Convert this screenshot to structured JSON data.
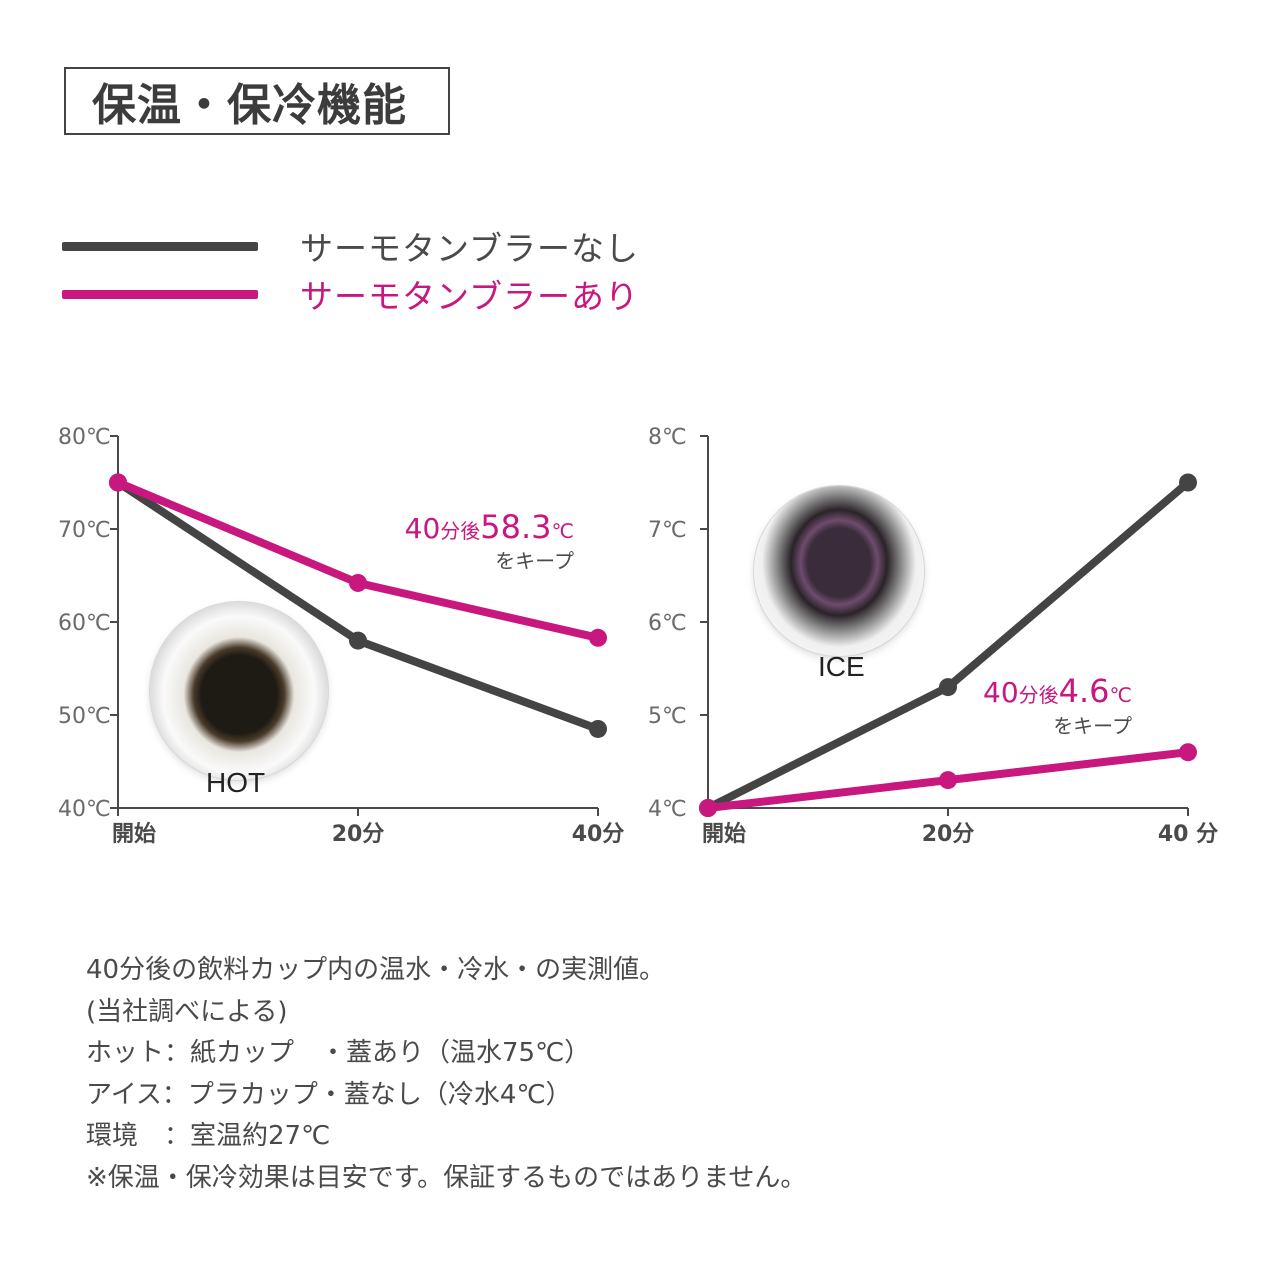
{
  "title": "保温・保冷機能",
  "legend": [
    {
      "label": "サーモタンブラーなし",
      "color": "#444444"
    },
    {
      "label": "サーモタンブラーあり",
      "color": "#c8177f"
    }
  ],
  "chart_data": [
    {
      "type": "line",
      "categories": [
        "開始",
        "20分",
        "40分"
      ],
      "y_ticks": [
        "40℃",
        "50℃",
        "60℃",
        "70℃",
        "80℃"
      ],
      "ylim": [
        40,
        80
      ],
      "series": [
        {
          "name": "サーモタンブラーなし",
          "values": [
            75,
            58,
            48.5
          ],
          "color": "#444444"
        },
        {
          "name": "サーモタンブラーあり",
          "values": [
            75,
            64.2,
            58.3
          ],
          "color": "#c8177f"
        }
      ],
      "annotation": {
        "lead": "40分後",
        "value": "58.3℃",
        "sub": "をキープ"
      },
      "photo_label": "HOT"
    },
    {
      "type": "line",
      "categories": [
        "開始",
        "20分",
        "40 分"
      ],
      "y_ticks": [
        "4℃",
        "5℃",
        "6℃",
        "7℃",
        "8℃"
      ],
      "ylim": [
        4,
        8
      ],
      "series": [
        {
          "name": "サーモタンブラーなし",
          "values": [
            4,
            5.3,
            7.5
          ],
          "color": "#444444"
        },
        {
          "name": "サーモタンブラーあり",
          "values": [
            4,
            4.3,
            4.6
          ],
          "color": "#c8177f"
        }
      ],
      "annotation": {
        "lead": "40分後",
        "value": "4.6℃",
        "sub": "をキープ"
      },
      "photo_label": "ICE"
    }
  ],
  "notes": [
    "40分後の飲料カップ内の温水・冷水・の実測値。",
    "(当社調べによる)",
    "ホット：紙カップ　・蓋あり（温水75℃）",
    "アイス：プラカップ・蓋なし（冷水4℃）",
    "環境　：室温約27℃",
    "※保温・保冷効果は目安です。保証するものではありません。"
  ]
}
